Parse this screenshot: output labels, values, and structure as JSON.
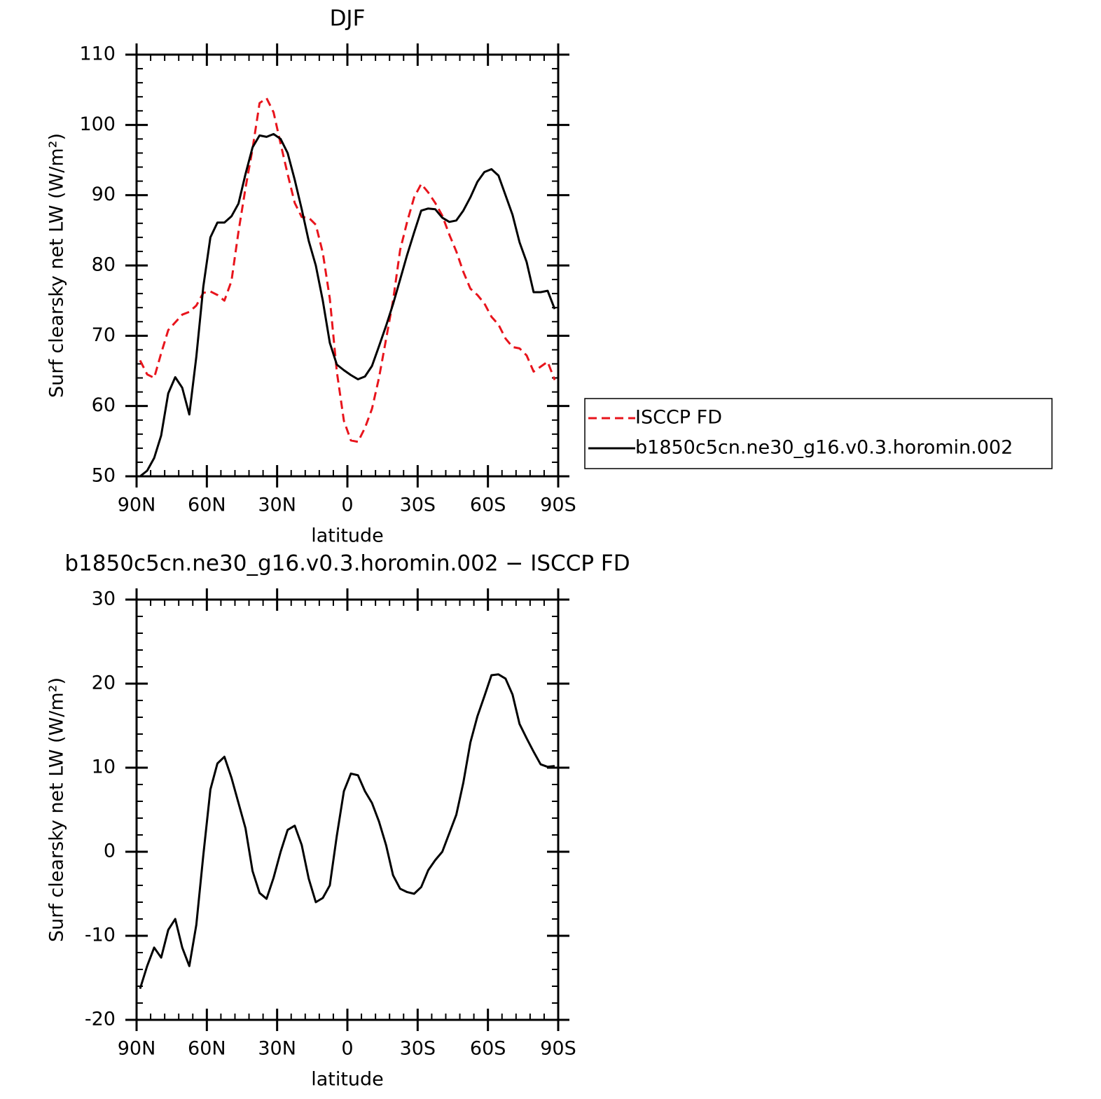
{
  "chart_data": [
    {
      "type": "line",
      "title": "DJF",
      "xlabel": "latitude",
      "ylabel": "Surf clearsky net LW (W/m²)",
      "x": [
        88.5,
        85.5,
        82.5,
        79.5,
        76.5,
        73.5,
        70.5,
        67.5,
        64.5,
        61.5,
        58.5,
        55.5,
        52.5,
        49.5,
        46.5,
        43.5,
        40.5,
        37.5,
        34.5,
        31.5,
        28.5,
        25.5,
        22.5,
        19.5,
        16.5,
        13.5,
        10.5,
        7.5,
        4.5,
        1.5,
        -1.5,
        -4.5,
        -7.5,
        -10.5,
        -13.5,
        -16.5,
        -19.5,
        -22.5,
        -25.5,
        -28.5,
        -31.5,
        -34.5,
        -37.5,
        -40.5,
        -43.5,
        -46.5,
        -49.5,
        -52.5,
        -55.5,
        -58.5,
        -61.5,
        -64.5,
        -67.5,
        -70.5,
        -73.5,
        -76.5,
        -79.5,
        -82.5,
        -85.5,
        -88.5
      ],
      "series": [
        {
          "name": "ISCCP FD",
          "color": "#e8141c",
          "line_style": "dashed",
          "values": [
            66.5,
            64.5,
            64.0,
            67.5,
            70.8,
            71.9,
            73.0,
            73.4,
            74.3,
            76.1,
            76.3,
            75.8,
            75.0,
            77.8,
            84.8,
            91.0,
            96.6,
            103.1,
            103.8,
            101.8,
            97.3,
            93.0,
            88.9,
            86.9,
            86.8,
            85.8,
            81.8,
            75.3,
            64.9,
            57.9,
            55.1,
            54.9,
            56.9,
            59.6,
            64.0,
            69.5,
            75.0,
            82.2,
            86.2,
            89.7,
            91.6,
            90.4,
            88.9,
            87.1,
            84.4,
            82.0,
            79.1,
            76.7,
            75.8,
            74.6,
            72.7,
            71.6,
            69.6,
            68.4,
            68.2,
            67.2,
            64.9,
            65.6,
            66.3,
            63.7
          ]
        },
        {
          "name": "b1850c5cn.ne30_g16.v0.3.horomin.002",
          "color": "#000000",
          "line_style": "solid",
          "values": [
            50.0,
            50.8,
            52.6,
            55.8,
            61.8,
            64.1,
            62.6,
            58.8,
            67.0,
            77.0,
            84.0,
            86.1,
            86.1,
            87.0,
            88.8,
            93.0,
            96.8,
            98.5,
            98.3,
            98.7,
            98.0,
            96.0,
            92.2,
            88.0,
            83.5,
            80.0,
            75.0,
            69.0,
            65.9,
            65.1,
            64.4,
            63.8,
            64.2,
            65.7,
            68.5,
            71.4,
            74.5,
            78.0,
            81.5,
            84.7,
            87.8,
            88.1,
            88.0,
            86.8,
            86.2,
            86.4,
            87.8,
            89.7,
            91.9,
            93.3,
            93.7,
            92.8,
            90.0,
            87.2,
            83.3,
            80.5,
            76.2,
            76.2,
            76.4,
            73.8
          ]
        }
      ],
      "xlim": [
        90,
        -90
      ],
      "xticks": [
        {
          "value": 90,
          "label": "90N"
        },
        {
          "value": 60,
          "label": "60N"
        },
        {
          "value": 30,
          "label": "30N"
        },
        0,
        {
          "value": -30,
          "label": "30S"
        },
        {
          "value": -60,
          "label": "60S"
        },
        {
          "value": -90,
          "label": "90S"
        }
      ],
      "ylim": [
        50,
        110
      ],
      "yticks": [
        50,
        60,
        70,
        80,
        90,
        100,
        110
      ],
      "legend": "right"
    },
    {
      "type": "line",
      "title": "b1850c5cn.ne30_g16.v0.3.horomin.002 − ISCCP FD",
      "xlabel": "latitude",
      "ylabel": "Surf clearsky net LW (W/m²)",
      "x": [
        88.5,
        85.5,
        82.5,
        79.5,
        76.5,
        73.5,
        70.5,
        67.5,
        64.5,
        61.5,
        58.5,
        55.5,
        52.5,
        49.5,
        46.5,
        43.5,
        40.5,
        37.5,
        34.5,
        31.5,
        28.5,
        25.5,
        22.5,
        19.5,
        16.5,
        13.5,
        10.5,
        7.5,
        4.5,
        1.5,
        -1.5,
        -4.5,
        -7.5,
        -10.5,
        -13.5,
        -16.5,
        -19.5,
        -22.5,
        -25.5,
        -28.5,
        -31.5,
        -34.5,
        -37.5,
        -40.5,
        -43.5,
        -46.5,
        -49.5,
        -52.5,
        -55.5,
        -58.5,
        -61.5,
        -64.5,
        -67.5,
        -70.5,
        -73.5,
        -76.5,
        -79.5,
        -82.5,
        -85.5,
        -88.5
      ],
      "color": "#000000",
      "values": [
        -16.3,
        -13.6,
        -11.4,
        -12.6,
        -9.3,
        -8.0,
        -11.4,
        -13.6,
        -8.7,
        -0.4,
        7.4,
        10.5,
        11.3,
        8.8,
        5.8,
        2.8,
        -2.3,
        -4.9,
        -5.6,
        -3.1,
        0.0,
        2.6,
        3.1,
        0.8,
        -3.2,
        -6.0,
        -5.5,
        -4.0,
        1.9,
        7.2,
        9.3,
        9.1,
        7.2,
        5.8,
        3.6,
        0.8,
        -2.8,
        -4.4,
        -4.8,
        -5.0,
        -4.2,
        -2.2,
        -1.0,
        0.0,
        2.2,
        4.4,
        8.2,
        13.0,
        16.1,
        18.5,
        21.0,
        21.1,
        20.6,
        18.7,
        15.2,
        13.5,
        11.9,
        10.4,
        10.1,
        10.2
      ],
      "xlim": [
        90,
        -90
      ],
      "xticks": [
        {
          "value": 90,
          "label": "90N"
        },
        {
          "value": 60,
          "label": "60N"
        },
        {
          "value": 30,
          "label": "30N"
        },
        0,
        {
          "value": -30,
          "label": "30S"
        },
        {
          "value": -60,
          "label": "60S"
        },
        {
          "value": -90,
          "label": "90S"
        }
      ],
      "ylim": [
        -20,
        30
      ],
      "yticks": [
        -20,
        -10,
        0,
        10,
        20,
        30
      ]
    }
  ]
}
